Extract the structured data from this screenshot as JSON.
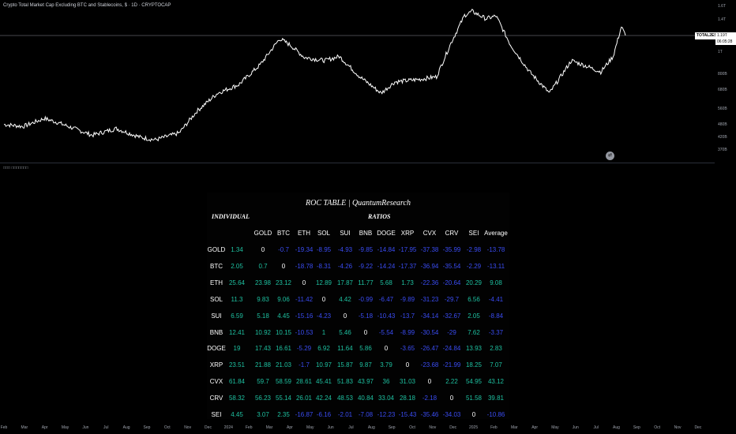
{
  "header": {
    "title": "Crypto Total Market Cap Excluding BTC and Stablecoins, $ · 1D · CRYPTOCAP",
    "ticker": "TOTAL2ES",
    "price": "1.19T",
    "countdown": "06:05:28"
  },
  "indicator": {
    "label": "□□□ □□□□□□□"
  },
  "event_icon": "earnings-icon",
  "chart_data": [
    {
      "type": "line",
      "title": "Crypto Total Market Cap Excluding BTC and Stablecoins, $ · 1D · CRYPTOCAP",
      "log_scale": true,
      "line_color": "#ffffff",
      "x_tick_labels": [
        "Feb",
        "Mar",
        "Apr",
        "May",
        "Jun",
        "Jul",
        "Aug",
        "Sep",
        "Oct",
        "Nov",
        "Dec",
        "2024",
        "Feb",
        "Mar",
        "Apr",
        "May",
        "Jun",
        "Jul",
        "Aug",
        "Sep",
        "Oct",
        "Nov",
        "Dec",
        "2025",
        "Feb",
        "Mar",
        "Apr",
        "May",
        "Jun",
        "Jul",
        "Aug",
        "Sep",
        "Oct",
        "Nov",
        "Dec"
      ],
      "y_tick_labels": [
        "1.6T",
        "1.4T",
        "1.2T",
        "1T",
        "800B",
        "680B",
        "560B",
        "480B",
        "420B",
        "370B"
      ],
      "y_tick_values": [
        1.6,
        1.4,
        1.2,
        1.0,
        0.8,
        0.68,
        0.56,
        0.48,
        0.42,
        0.37
      ],
      "series": [
        {
          "x": [
            "2023-02-01",
            "2023-03-01",
            "2023-04-01",
            "2023-04-20",
            "2023-06-10",
            "2023-07-15",
            "2023-08-20",
            "2023-09-10",
            "2023-10-15",
            "2023-11-10",
            "2023-12-10",
            "2024-01-10",
            "2024-02-10",
            "2024-03-10",
            "2024-03-25",
            "2024-04-15",
            "2024-05-15",
            "2024-06-05",
            "2024-07-05",
            "2024-08-05",
            "2024-08-25",
            "2024-09-30",
            "2024-10-25",
            "2024-11-15",
            "2024-12-05",
            "2024-12-16",
            "2025-01-05",
            "2025-01-20",
            "2025-02-10",
            "2025-03-10",
            "2025-04-08",
            "2025-05-10",
            "2025-06-05",
            "2025-06-22",
            "2025-07-10",
            "2025-07-22",
            "2025-07-28"
          ],
          "y": [
            0.48,
            0.47,
            0.51,
            0.49,
            0.43,
            0.46,
            0.42,
            0.41,
            0.44,
            0.55,
            0.66,
            0.72,
            0.88,
            1.15,
            1.08,
            0.95,
            0.92,
            0.96,
            0.78,
            0.66,
            0.74,
            0.76,
            0.78,
            1.1,
            1.46,
            1.52,
            1.41,
            1.45,
            1.08,
            0.82,
            0.66,
            0.92,
            0.86,
            0.82,
            0.96,
            1.3,
            1.19
          ]
        }
      ],
      "current_value": "1.19T"
    },
    {
      "type": "table",
      "title": "ROC TABLE | QuantumResearch",
      "individual_label": "INDIVIDUAL",
      "ratios_label": "RATIOS",
      "columns": [
        "GOLD",
        "BTC",
        "ETH",
        "SOL",
        "SUI",
        "BNB",
        "DOGE",
        "XRP",
        "CVX",
        "CRV",
        "SEI",
        "Average"
      ],
      "positive_color": "#1ec0a0",
      "negative_color": "#3a4cf2",
      "neutral_color": "#ffffff",
      "rows": [
        {
          "name": "GOLD",
          "individual": "1.34",
          "values": [
            "0",
            "-0.7",
            "-19.34",
            "-8.95",
            "-4.93",
            "-9.85",
            "-14.84",
            "-17.95",
            "-37.38",
            "-35.99",
            "-2.98",
            "-13.78"
          ]
        },
        {
          "name": "BTC",
          "individual": "2.05",
          "values": [
            "0.7",
            "0",
            "-18.78",
            "-8.31",
            "-4.26",
            "-9.22",
            "-14.24",
            "-17.37",
            "-36.94",
            "-35.54",
            "-2.29",
            "-13.11"
          ]
        },
        {
          "name": "ETH",
          "individual": "25.64",
          "values": [
            "23.98",
            "23.12",
            "0",
            "12.89",
            "17.87",
            "11.77",
            "5.68",
            "1.73",
            "-22.36",
            "-20.64",
            "20.29",
            "9.08"
          ]
        },
        {
          "name": "SOL",
          "individual": "11.3",
          "values": [
            "9.83",
            "9.06",
            "-11.42",
            "0",
            "4.42",
            "-0.99",
            "-6.47",
            "-9.89",
            "-31.23",
            "-29.7",
            "6.56",
            "-4.41"
          ]
        },
        {
          "name": "SUI",
          "individual": "6.59",
          "values": [
            "5.18",
            "4.45",
            "-15.16",
            "-4.23",
            "0",
            "-5.18",
            "-10.43",
            "-13.7",
            "-34.14",
            "-32.67",
            "2.05",
            "-8.84"
          ]
        },
        {
          "name": "BNB",
          "individual": "12.41",
          "values": [
            "10.92",
            "10.15",
            "-10.53",
            "1",
            "5.46",
            "0",
            "-5.54",
            "-8.99",
            "-30.54",
            "-29",
            "7.62",
            "-3.37"
          ]
        },
        {
          "name": "DOGE",
          "individual": "19",
          "values": [
            "17.43",
            "16.61",
            "-5.29",
            "6.92",
            "11.64",
            "5.86",
            "0",
            "-3.65",
            "-26.47",
            "-24.84",
            "13.93",
            "2.83"
          ]
        },
        {
          "name": "XRP",
          "individual": "23.51",
          "values": [
            "21.88",
            "21.03",
            "-1.7",
            "10.97",
            "15.87",
            "9.87",
            "3.79",
            "0",
            "-23.68",
            "-21.99",
            "18.25",
            "7.07"
          ]
        },
        {
          "name": "CVX",
          "individual": "61.84",
          "values": [
            "59.7",
            "58.59",
            "28.61",
            "45.41",
            "51.83",
            "43.97",
            "36",
            "31.03",
            "0",
            "2.22",
            "54.95",
            "43.12"
          ]
        },
        {
          "name": "CRV",
          "individual": "58.32",
          "values": [
            "56.23",
            "55.14",
            "26.01",
            "42.24",
            "48.53",
            "40.84",
            "33.04",
            "28.18",
            "-2.18",
            "0",
            "51.58",
            "39.81"
          ]
        },
        {
          "name": "SEI",
          "individual": "4.45",
          "values": [
            "3.07",
            "2.35",
            "-16.87",
            "-6.16",
            "-2.01",
            "-7.08",
            "-12.23",
            "-15.43",
            "-35.46",
            "-34.03",
            "0",
            "-10.86"
          ]
        }
      ]
    }
  ]
}
